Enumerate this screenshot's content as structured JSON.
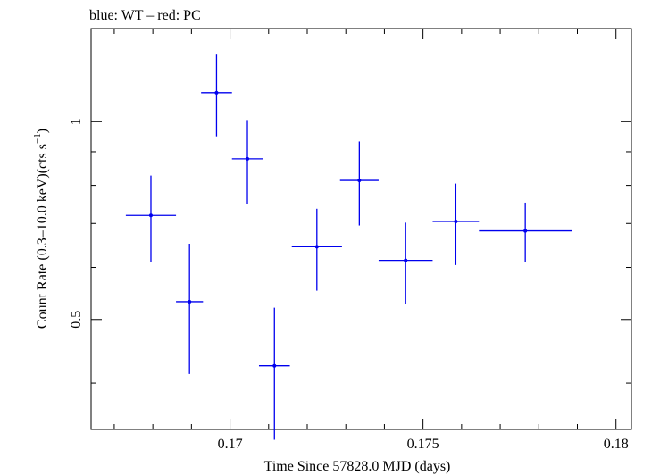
{
  "chart_data": {
    "type": "scatter",
    "title": "blue: WT – red: PC",
    "xlabel": "Time Since 57828.0 MJD (days)",
    "ylabel_main": "Count Rate (0.3–10.0 keV)(cts s",
    "ylabel_sup": "−1",
    "ylabel_end": ")",
    "xlim": [
      0.1664,
      0.1804
    ],
    "ylim": [
      0.34,
      1.386
    ],
    "y_scale": "log",
    "x_ticks": [
      {
        "value": 0.17,
        "label": "0.17"
      },
      {
        "value": 0.175,
        "label": "0.175"
      },
      {
        "value": 0.18,
        "label": "0.18"
      }
    ],
    "x_minor_step": 0.001,
    "y_ticks": [
      {
        "value": 0.5,
        "label": "0.5"
      },
      {
        "value": 1.0,
        "label": "1"
      }
    ],
    "y_minor_ticks": [
      0.4,
      0.6,
      0.7,
      0.8,
      0.9
    ],
    "series": [
      {
        "name": "WT",
        "color": "#0000ee",
        "points": [
          {
            "x": 0.16795,
            "xerr": 0.00065,
            "y": 0.72,
            "ylo": 0.612,
            "yhi": 0.828
          },
          {
            "x": 0.16895,
            "xerr": 0.00035,
            "y": 0.532,
            "ylo": 0.413,
            "yhi": 0.652
          },
          {
            "x": 0.16965,
            "xerr": 0.0004,
            "y": 1.107,
            "ylo": 0.95,
            "yhi": 1.265
          },
          {
            "x": 0.17045,
            "xerr": 0.0004,
            "y": 0.878,
            "ylo": 0.75,
            "yhi": 1.006
          },
          {
            "x": 0.17115,
            "xerr": 0.0004,
            "y": 0.425,
            "ylo": 0.328,
            "yhi": 0.521
          },
          {
            "x": 0.17225,
            "xerr": 0.00065,
            "y": 0.645,
            "ylo": 0.553,
            "yhi": 0.737
          },
          {
            "x": 0.17335,
            "xerr": 0.0005,
            "y": 0.814,
            "ylo": 0.695,
            "yhi": 0.933
          },
          {
            "x": 0.17455,
            "xerr": 0.0007,
            "y": 0.615,
            "ylo": 0.528,
            "yhi": 0.702
          },
          {
            "x": 0.17585,
            "xerr": 0.0006,
            "y": 0.705,
            "ylo": 0.605,
            "yhi": 0.805
          },
          {
            "x": 0.17765,
            "xerr": 0.0012,
            "y": 0.682,
            "ylo": 0.611,
            "yhi": 0.753
          }
        ]
      }
    ]
  }
}
